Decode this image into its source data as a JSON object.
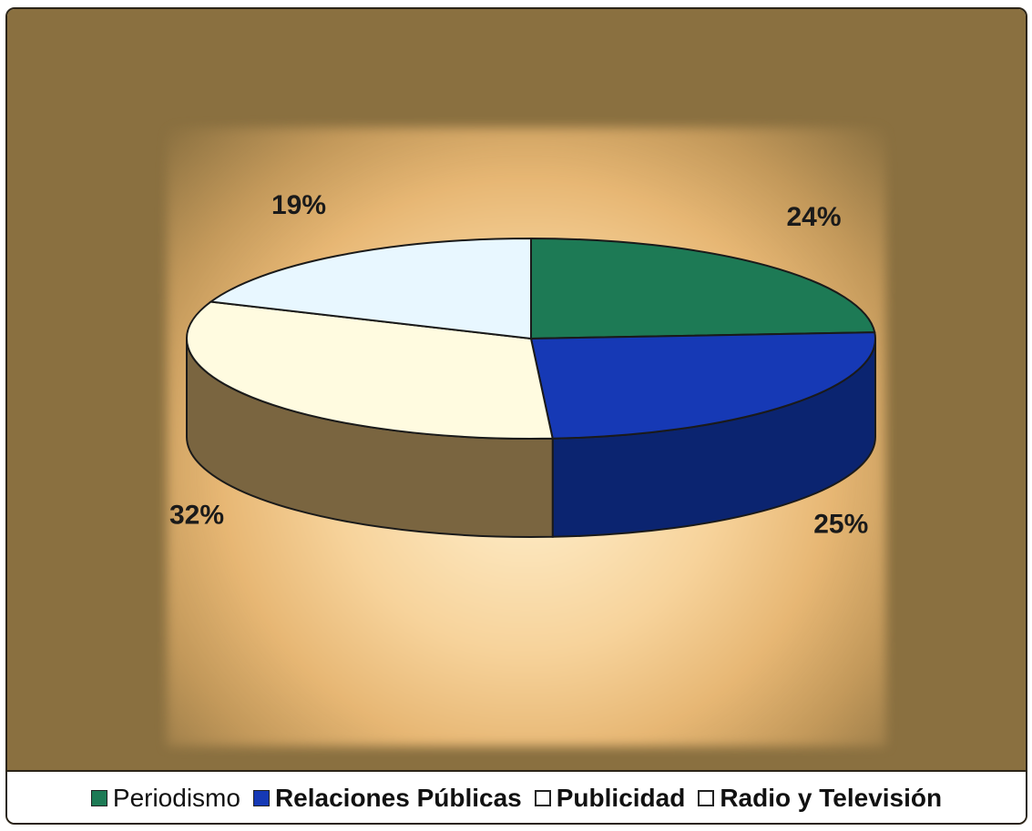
{
  "chart_data": {
    "type": "pie",
    "title": "",
    "categories": [
      "Periodismo",
      "Relaciones Públicas",
      "Publicidad",
      "Radio y Televisión"
    ],
    "values": [
      24,
      25,
      32,
      19
    ],
    "labels": [
      "24%",
      "25%",
      "32%",
      "19%"
    ],
    "colors": {
      "Periodismo": "#1d7a55",
      "Relaciones Públicas": "#1639b5",
      "Publicidad": "#fffbe0",
      "Radio y Televisión": "#e8f7ff"
    },
    "legend_position": "bottom",
    "style": "3d-pie"
  },
  "legend": {
    "items": [
      {
        "label": "Periodismo",
        "color": "#1d7a55"
      },
      {
        "label": "Relaciones Públicas",
        "color": "#1639b5"
      },
      {
        "label": "Publicidad",
        "color": "#ffffff"
      },
      {
        "label": "Radio y Televisión",
        "color": "#ffffff"
      }
    ]
  },
  "colors": {
    "plot_background": "#8a7040"
  }
}
